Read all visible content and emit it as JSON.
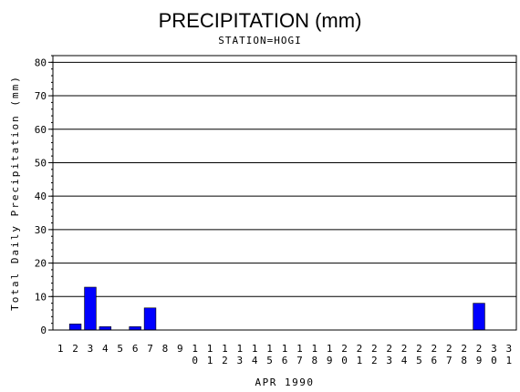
{
  "chart_data": {
    "type": "bar",
    "title": "PRECIPITATION (mm)",
    "subtitle": "STATION=HOGI",
    "xlabel": "APR 1990",
    "ylabel": "Total Daily Precipitation (mm)",
    "ylim": [
      0,
      82
    ],
    "yticks": [
      0,
      10,
      20,
      30,
      40,
      50,
      60,
      70,
      80
    ],
    "grid": "horizontal",
    "bar_color": "#0000ff",
    "categories": [
      "1",
      "2",
      "3",
      "4",
      "5",
      "6",
      "7",
      "8",
      "9",
      "10",
      "11",
      "12",
      "13",
      "14",
      "15",
      "16",
      "17",
      "18",
      "19",
      "20",
      "21",
      "22",
      "23",
      "24",
      "25",
      "26",
      "27",
      "28",
      "29",
      "30",
      "31"
    ],
    "values": [
      0,
      1.8,
      12.8,
      1.0,
      0,
      1.0,
      6.6,
      0,
      0,
      0,
      0,
      0,
      0,
      0,
      0,
      0,
      0,
      0,
      0,
      0,
      0,
      0,
      0,
      0,
      0,
      0,
      0,
      0,
      8.0,
      0,
      0
    ]
  }
}
